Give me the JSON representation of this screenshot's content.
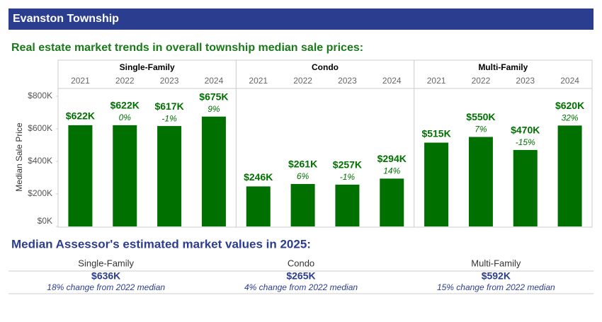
{
  "header": {
    "title": "Evanston Township"
  },
  "chart_data": {
    "type": "bar",
    "title": "Real estate market trends in overall township median sale prices:",
    "ylabel": "Median Sale Price",
    "color": "#007000",
    "grid": false,
    "ylim": [
      0,
      800000
    ],
    "yticks": [
      {
        "value": 0,
        "label": "$0K"
      },
      {
        "value": 200000,
        "label": "$200K"
      },
      {
        "value": 400000,
        "label": "$400K"
      },
      {
        "value": 600000,
        "label": "$600K"
      },
      {
        "value": 800000,
        "label": "$800K"
      }
    ],
    "panels": [
      {
        "name": "Single-Family",
        "categories": [
          "2021",
          "2022",
          "2023",
          "2024"
        ],
        "values": [
          622000,
          622000,
          617000,
          675000
        ],
        "value_labels": [
          "$622K",
          "$622K",
          "$617K",
          "$675K"
        ],
        "change_labels": [
          null,
          "0%",
          "-1%",
          "9%"
        ]
      },
      {
        "name": "Condo",
        "categories": [
          "2021",
          "2022",
          "2023",
          "2024"
        ],
        "values": [
          246000,
          261000,
          257000,
          294000
        ],
        "value_labels": [
          "$246K",
          "$261K",
          "$257K",
          "$294K"
        ],
        "change_labels": [
          null,
          "6%",
          "-1%",
          "14%"
        ]
      },
      {
        "name": "Multi-Family",
        "categories": [
          "2021",
          "2022",
          "2023",
          "2024"
        ],
        "values": [
          515000,
          550000,
          470000,
          620000
        ],
        "value_labels": [
          "$515K",
          "$550K",
          "$470K",
          "$620K"
        ],
        "change_labels": [
          null,
          "7%",
          "-15%",
          "32%"
        ]
      }
    ]
  },
  "assessor": {
    "title": "Median Assessor's estimated market values in 2025:",
    "columns": [
      {
        "type": "Single-Family",
        "value": "$636K",
        "note": "18% change from 2022 median"
      },
      {
        "type": "Condo",
        "value": "$265K",
        "note": "4% change from 2022 median"
      },
      {
        "type": "Multi-Family",
        "value": "$592K",
        "note": "15% change from 2022 median"
      }
    ]
  }
}
